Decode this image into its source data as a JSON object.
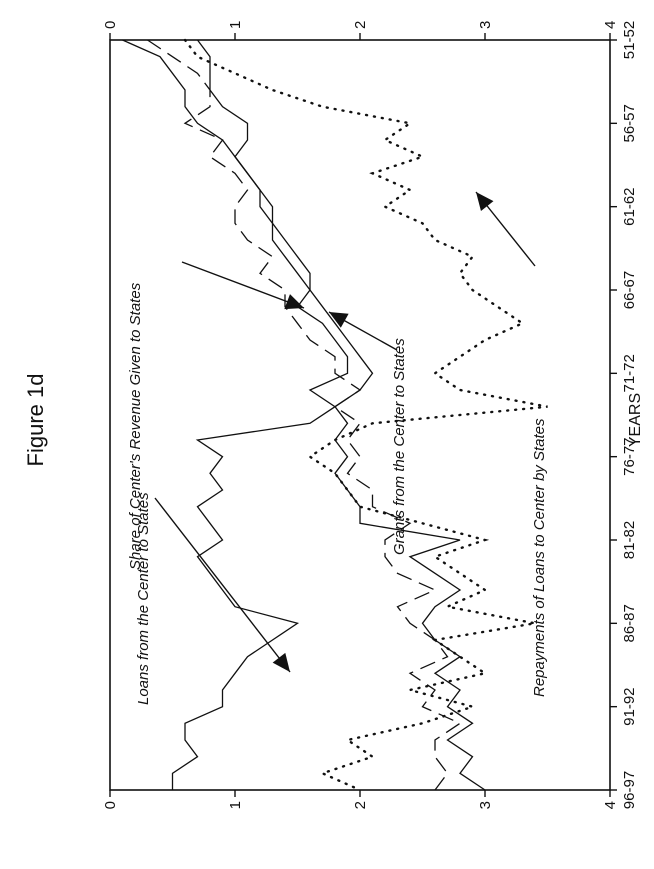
{
  "chart_data": {
    "type": "line",
    "title": "Figure 1d",
    "xlabel": "YEARS",
    "ylabel_left": "",
    "ylabel_right": "",
    "x_tick_labels": [
      "51-52",
      "56-57",
      "61-62",
      "66-67",
      "71-72",
      "76-77",
      "81-82",
      "86-87",
      "91-92",
      "96-97"
    ],
    "y_left_ticks": [
      "0",
      "1",
      "2",
      "3",
      "4"
    ],
    "y_right_ticks": [
      "0",
      "1",
      "2",
      "3",
      "4"
    ],
    "ylim": [
      0,
      4
    ],
    "grid": false,
    "orientation_note": "rotated 90 degrees clockwise (years run down the page)",
    "x": [
      "51-52",
      "52-53",
      "53-54",
      "54-55",
      "55-56",
      "56-57",
      "57-58",
      "58-59",
      "59-60",
      "60-61",
      "61-62",
      "62-63",
      "63-64",
      "64-65",
      "65-66",
      "66-67",
      "67-68",
      "68-69",
      "69-70",
      "70-71",
      "71-72",
      "72-73",
      "73-74",
      "74-75",
      "75-76",
      "76-77",
      "77-78",
      "78-79",
      "79-80",
      "80-81",
      "81-82",
      "82-83",
      "83-84",
      "84-85",
      "85-86",
      "86-87",
      "87-88",
      "88-89",
      "89-90",
      "90-91",
      "91-92",
      "92-93",
      "93-94",
      "94-95",
      "95-96",
      "96-97"
    ],
    "series": [
      {
        "name": "Loans from the Center to States",
        "style": "dotted",
        "values": [
          0.6,
          0.7,
          1.0,
          1.3,
          1.7,
          2.4,
          2.2,
          2.5,
          2.1,
          2.4,
          2.2,
          2.5,
          2.6,
          2.9,
          2.8,
          2.9,
          3.1,
          3.3,
          3.0,
          2.8,
          2.6,
          2.8,
          3.5,
          2.1,
          1.8,
          1.6,
          1.8,
          1.9,
          2.0,
          2.5,
          3.0,
          2.6,
          2.8,
          3.0,
          2.7,
          3.4,
          2.6,
          2.8,
          3.0,
          2.4,
          2.9,
          2.5,
          1.9,
          2.1,
          1.7,
          2.0
        ]
      },
      {
        "name": "Share of Center's Revenue Given to States",
        "style": "solid",
        "values": [
          0.1,
          0.4,
          0.5,
          0.6,
          0.6,
          0.7,
          0.9,
          1.0,
          1.1,
          1.2,
          1.3,
          1.3,
          1.4,
          1.5,
          1.6,
          1.6,
          1.7,
          1.8,
          1.9,
          2.0,
          2.1,
          2.0,
          1.8,
          1.9,
          1.8,
          1.9,
          1.8,
          1.9,
          2.0,
          2.0,
          2.8,
          2.4,
          2.6,
          2.8,
          2.6,
          2.5,
          2.6,
          2.8,
          2.6,
          2.8,
          2.7,
          2.9,
          2.7,
          2.9,
          2.8,
          3.0
        ]
      },
      {
        "name": "Grants from the Center to States",
        "style": "dashed",
        "values": [
          0.3,
          0.5,
          0.7,
          0.8,
          0.8,
          0.6,
          0.9,
          0.8,
          1.0,
          1.1,
          1.0,
          1.0,
          1.1,
          1.3,
          1.2,
          1.4,
          1.4,
          1.5,
          1.6,
          1.8,
          1.8,
          2.0,
          1.8,
          2.0,
          1.9,
          2.0,
          1.9,
          2.1,
          2.1,
          2.4,
          2.2,
          2.2,
          2.3,
          2.6,
          2.3,
          2.4,
          2.6,
          2.7,
          2.4,
          2.6,
          2.5,
          2.8,
          2.6,
          2.6,
          2.7,
          2.6
        ]
      },
      {
        "name": "Repayments of Loans to Center by States",
        "style": "solid",
        "values": [
          0.7,
          0.8,
          0.8,
          0.8,
          0.9,
          1.1,
          1.1,
          1.0,
          1.1,
          1.2,
          1.2,
          1.3,
          1.3,
          1.4,
          1.5,
          1.6,
          1.5,
          1.7,
          1.8,
          1.9,
          1.9,
          1.6,
          1.8,
          1.6,
          0.7,
          0.9,
          0.8,
          0.9,
          0.7,
          0.8,
          0.9,
          0.7,
          0.8,
          0.9,
          1.0,
          1.5,
          1.3,
          1.1,
          1.0,
          0.9,
          0.9,
          0.6,
          0.6,
          0.7,
          0.5,
          0.5
        ]
      }
    ],
    "annotations": [
      {
        "text": "Loans from the Center to States",
        "target_series": 0
      },
      {
        "text": "Share of Center's Revenue Given to States",
        "target_series": 1
      },
      {
        "text": "Grants from the Center to States",
        "target_series": 2
      },
      {
        "text": "Repayments of Loans to Center by States",
        "target_series": 3
      }
    ]
  }
}
